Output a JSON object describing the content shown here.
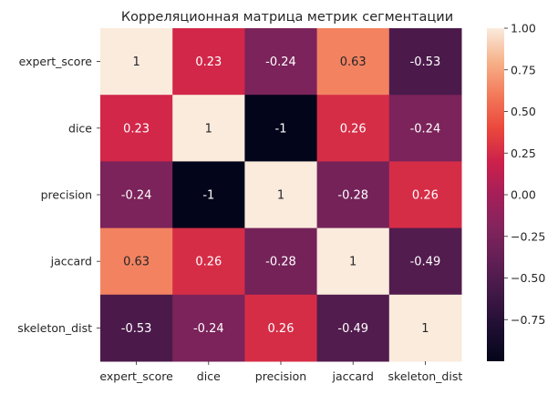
{
  "chart_data": {
    "type": "heatmap",
    "title": "Корреляционная матрица метрик сегментации",
    "xlabel": "",
    "ylabel": "",
    "x_categories": [
      "expert_score",
      "dice",
      "precision",
      "jaccard",
      "skeleton_dist"
    ],
    "y_categories": [
      "expert_score",
      "dice",
      "precision",
      "jaccard",
      "skeleton_dist"
    ],
    "values": [
      [
        1,
        0.23,
        -0.24,
        0.63,
        -0.53
      ],
      [
        0.23,
        1,
        -1,
        0.26,
        -0.24
      ],
      [
        -0.24,
        -1,
        1,
        -0.28,
        0.26
      ],
      [
        0.63,
        0.26,
        -0.28,
        1,
        -0.49
      ],
      [
        -0.53,
        -0.24,
        0.26,
        -0.49,
        1
      ]
    ],
    "annotations": [
      [
        "1",
        "0.23",
        "-0.24",
        "0.63",
        "-0.53"
      ],
      [
        "0.23",
        "1",
        "-1",
        "0.26",
        "-0.24"
      ],
      [
        "-0.24",
        "-1",
        "1",
        "-0.28",
        "0.26"
      ],
      [
        "0.63",
        "0.26",
        "-0.28",
        "1",
        "-0.49"
      ],
      [
        "-0.53",
        "-0.24",
        "0.26",
        "-0.49",
        "1"
      ]
    ],
    "colormap": "rocket",
    "vmin": -1,
    "vmax": 1,
    "colorbar_ticks": [
      1.0,
      0.75,
      0.5,
      0.25,
      0.0,
      -0.25,
      -0.5,
      -0.75
    ],
    "colorbar_tick_labels": [
      "1.00",
      "0.75",
      "0.50",
      "0.25",
      "0.00",
      "−0.25",
      "−0.50",
      "−0.75"
    ],
    "grid": false,
    "legend": "colorbar right"
  }
}
